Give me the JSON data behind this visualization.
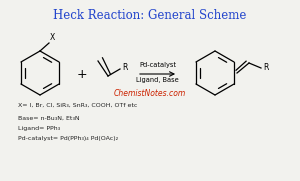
{
  "title": "Heck Reaction: General Scheme",
  "title_color": "#2244cc",
  "title_fontsize": 8.5,
  "watermark": "ChemistNotes.com",
  "watermark_color": "#cc2200",
  "watermark_fontsize": 5.5,
  "notes": [
    "X= I, Br, Cl, SiR₃, SnR₃, COOH, OTf etc",
    "Base= n-Bu₃N, Et₃N",
    "Ligand= PPh₃",
    "Pd-catalyst= Pd(PPh₃)₄ Pd(OAc)₂"
  ],
  "arrow_label_top": "Pd-catalyst",
  "arrow_label_bottom": "Ligand, Base",
  "bg_color": "#f2f2ee"
}
